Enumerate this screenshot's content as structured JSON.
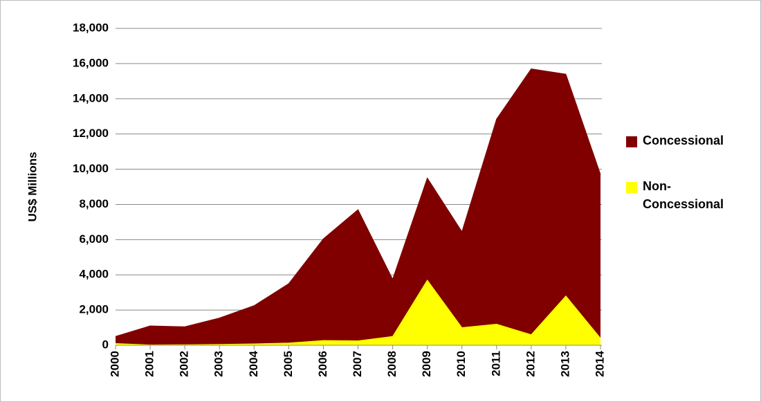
{
  "chart_data": {
    "type": "area",
    "stacked": true,
    "y_label": "US$ Millions",
    "categories": [
      "2000",
      "2001",
      "2002",
      "2003",
      "2004",
      "2005",
      "2006",
      "2007",
      "2008",
      "2009",
      "2010",
      "2011",
      "2012",
      "2013",
      "2014"
    ],
    "series": [
      {
        "name": "Concessional",
        "color": "#800000",
        "values": [
          400,
          1080,
          1020,
          1500,
          2170,
          3370,
          5780,
          7450,
          3250,
          5800,
          5450,
          11650,
          15100,
          12600,
          9300
        ]
      },
      {
        "name": "Non-Concessional",
        "color": "#ffff00",
        "values": [
          100,
          20,
          30,
          50,
          80,
          130,
          270,
          250,
          500,
          3700,
          1000,
          1200,
          600,
          2800,
          400
        ]
      }
    ],
    "ylim": [
      0,
      18000
    ],
    "yticks": [
      0,
      {
        "value": 2000,
        "label": "2,000"
      },
      {
        "value": 4000,
        "label": "4,000"
      },
      {
        "value": 6000,
        "label": "6,000"
      },
      {
        "value": 8000,
        "label": "8,000"
      },
      {
        "value": 10000,
        "label": "10,000"
      },
      {
        "value": 12000,
        "label": "12,000"
      },
      {
        "value": 14000,
        "label": "14,000"
      },
      {
        "value": 16000,
        "label": "16,000"
      },
      {
        "value": 18000,
        "label": "18,000"
      }
    ],
    "grid": true,
    "legend": "right"
  }
}
